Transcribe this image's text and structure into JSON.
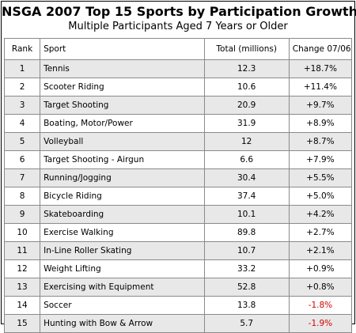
{
  "title": "NSGA 2007 Top 15 Sports by Participation Growth",
  "subtitle": "Multiple Participants Aged 7 Years or Older",
  "columns": {
    "rank": "Rank",
    "sport": "Sport",
    "total": "Total (millions)",
    "change": "Change 07/06"
  },
  "rows": [
    {
      "rank": "1",
      "sport": "Tennis",
      "total": "12.3",
      "change": "+18.7%"
    },
    {
      "rank": "2",
      "sport": "Scooter Riding",
      "total": "10.6",
      "change": "+11.4%"
    },
    {
      "rank": "3",
      "sport": "Target Shooting",
      "total": "20.9",
      "change": "+9.7%"
    },
    {
      "rank": "4",
      "sport": "Boating, Motor/Power",
      "total": "31.9",
      "change": "+8.9%"
    },
    {
      "rank": "5",
      "sport": "Volleyball",
      "total": "12",
      "change": "+8.7%"
    },
    {
      "rank": "6",
      "sport": "Target Shooting - Airgun",
      "total": "6.6",
      "change": "+7.9%"
    },
    {
      "rank": "7",
      "sport": "Running/Jogging",
      "total": "30.4",
      "change": "+5.5%"
    },
    {
      "rank": "8",
      "sport": "Bicycle Riding",
      "total": "37.4",
      "change": "+5.0%"
    },
    {
      "rank": "9",
      "sport": "Skateboarding",
      "total": "10.1",
      "change": "+4.2%"
    },
    {
      "rank": "10",
      "sport": "Exercise Walking",
      "total": "89.8",
      "change": "+2.7%"
    },
    {
      "rank": "11",
      "sport": "In-Line Roller Skating",
      "total": "10.7",
      "change": "+2.1%"
    },
    {
      "rank": "12",
      "sport": "Weight Lifting",
      "total": "33.2",
      "change": "+0.9%"
    },
    {
      "rank": "13",
      "sport": "Exercising with Equipment",
      "total": "52.8",
      "change": "+0.8%"
    },
    {
      "rank": "14",
      "sport": "Soccer",
      "total": "13.8",
      "change": "-1.8%"
    },
    {
      "rank": "15",
      "sport": "Hunting with Bow & Arrow",
      "total": "5.7",
      "change": "-1.9%"
    }
  ],
  "colors": {
    "negative_change": "#d40000",
    "shaded_row": "#e8e8e8"
  }
}
